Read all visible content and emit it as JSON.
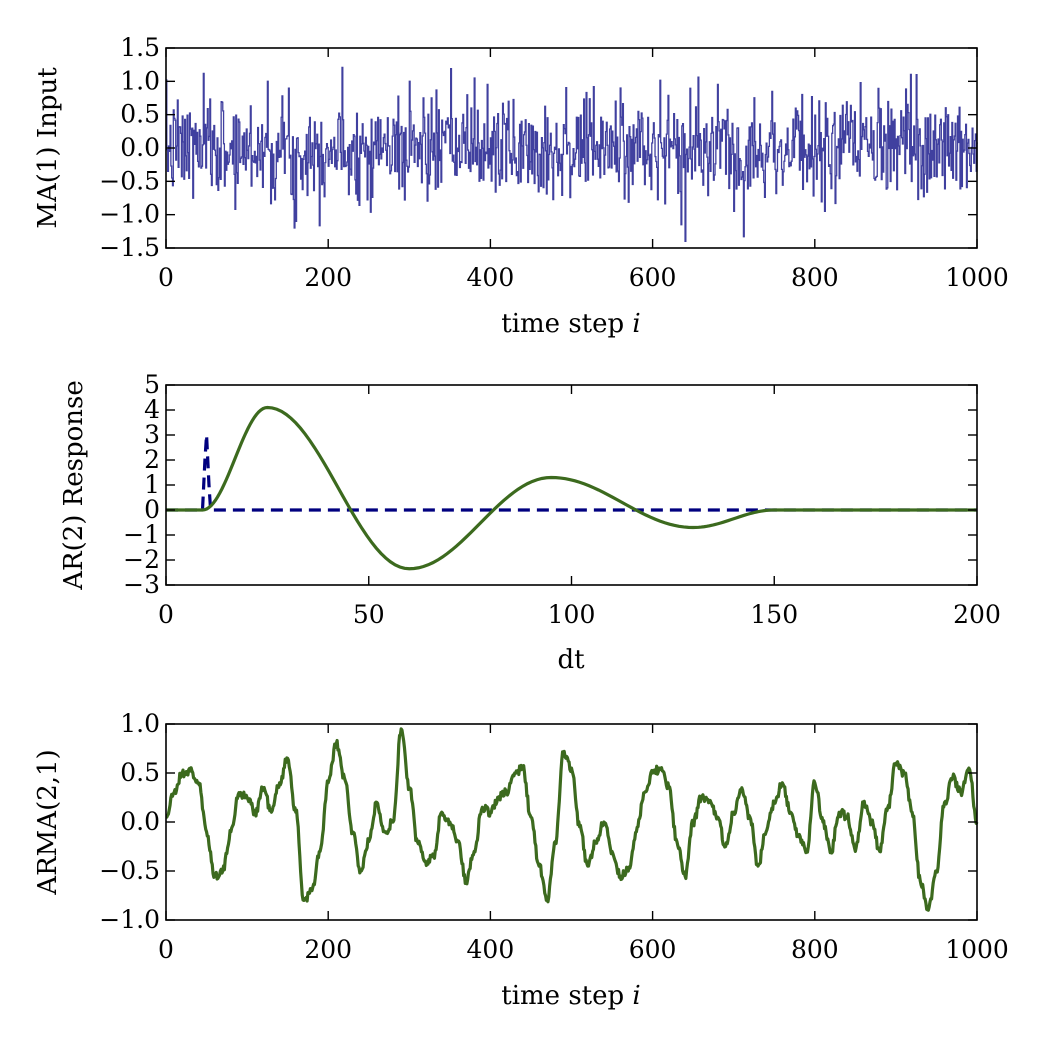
{
  "colors": {
    "ma_series": "#00007f",
    "arma_series": "#3c6a1e",
    "ar_dashed": "#00007f",
    "ar_solid": "#3c6a1e"
  },
  "chart_data": [
    {
      "type": "line",
      "id": "ma1",
      "ylabel": "MA(1) Input",
      "xlabel_text": "time step ",
      "xlabel_var": "i",
      "xlim": [
        0,
        1000
      ],
      "ylim": [
        -1.5,
        1.5
      ],
      "xticks": [
        0,
        200,
        400,
        600,
        800,
        1000
      ],
      "yticks": [
        1.5,
        1.0,
        0.5,
        0.0,
        -0.5,
        -1.0,
        -1.5
      ],
      "xtick_labels": [
        "0",
        "200",
        "400",
        "600",
        "800",
        "1000"
      ],
      "ytick_labels": [
        "1.5",
        "1.0",
        "0.5",
        "0.0",
        "−0.5",
        "−1.0",
        "−1.5"
      ],
      "series": [
        {
          "style": "solid",
          "generator": "white-noise",
          "x_range": [
            0,
            1000
          ],
          "std": 0.37,
          "notable_points": [
            [
              158,
              -1.2
            ],
            [
              160,
              -1.1
            ],
            [
              640,
              -1.4
            ],
            [
              635,
              -1.15
            ],
            [
              925,
              1.1
            ],
            [
              125,
              1.0
            ],
            [
              380,
              1.05
            ],
            [
              300,
              1.0
            ],
            [
              560,
              0.9
            ],
            [
              700,
              -0.95
            ],
            [
              85,
              -0.92
            ]
          ]
        }
      ]
    },
    {
      "type": "line",
      "id": "ar2",
      "ylabel": "AR(2) Response",
      "xlabel_text": "dt",
      "xlabel_var": "",
      "xlim": [
        0,
        200
      ],
      "ylim": [
        -3,
        5
      ],
      "xticks": [
        0,
        50,
        100,
        150,
        200
      ],
      "yticks": [
        5,
        4,
        3,
        2,
        1,
        0,
        -1,
        -2,
        -3
      ],
      "xtick_labels": [
        "0",
        "50",
        "100",
        "150",
        "200"
      ],
      "ytick_labels": [
        "5",
        "4",
        "3",
        "2",
        "1",
        "0",
        "−1",
        "−2",
        "−3"
      ],
      "series": [
        {
          "style": "dashed",
          "x": [
            0,
            8.5,
            9,
            9.3,
            9.6,
            10,
            10.3,
            10.6,
            11,
            200
          ],
          "y": [
            0,
            0,
            0,
            1.0,
            2.0,
            3.0,
            2.0,
            1.0,
            0,
            0
          ]
        },
        {
          "style": "solid",
          "x": [
            0,
            9,
            25,
            60,
            95,
            130,
            150,
            200
          ],
          "y": [
            0,
            0,
            4.1,
            -2.35,
            1.3,
            -0.7,
            0,
            0
          ]
        }
      ]
    },
    {
      "type": "line",
      "id": "arma21",
      "ylabel": "ARMA(2,1)",
      "xlabel_text": "time step ",
      "xlabel_var": "i",
      "xlim": [
        0,
        1000
      ],
      "ylim": [
        -1.0,
        1.0
      ],
      "xticks": [
        0,
        200,
        400,
        600,
        800,
        1000
      ],
      "yticks": [
        1.0,
        0.5,
        0.0,
        -0.5,
        -1.0
      ],
      "xtick_labels": [
        "0",
        "200",
        "400",
        "600",
        "800",
        "1000"
      ],
      "ytick_labels": [
        "1.0",
        "0.5",
        "0.0",
        "−0.5",
        "−1.0"
      ],
      "series": [
        {
          "style": "solid",
          "x": [
            0,
            10,
            20,
            30,
            40,
            50,
            60,
            70,
            80,
            90,
            100,
            110,
            120,
            130,
            140,
            150,
            160,
            170,
            180,
            190,
            200,
            210,
            220,
            230,
            240,
            250,
            260,
            270,
            280,
            290,
            300,
            310,
            320,
            330,
            340,
            350,
            360,
            370,
            380,
            390,
            400,
            410,
            420,
            430,
            440,
            450,
            460,
            470,
            480,
            490,
            500,
            510,
            520,
            530,
            540,
            550,
            560,
            570,
            580,
            590,
            600,
            610,
            620,
            630,
            640,
            650,
            660,
            670,
            680,
            690,
            700,
            710,
            720,
            730,
            740,
            750,
            760,
            770,
            780,
            790,
            800,
            810,
            820,
            830,
            840,
            850,
            860,
            870,
            880,
            890,
            900,
            910,
            920,
            930,
            940,
            950,
            960,
            970,
            980,
            990,
            1000
          ],
          "y": [
            0.05,
            0.3,
            0.5,
            0.52,
            0.4,
            -0.1,
            -0.55,
            -0.5,
            -0.1,
            0.3,
            0.25,
            0.1,
            0.35,
            0.1,
            0.4,
            0.65,
            0.1,
            -0.8,
            -0.7,
            -0.3,
            0.4,
            0.8,
            0.45,
            -0.1,
            -0.5,
            -0.2,
            0.2,
            -0.1,
            0.0,
            0.95,
            0.35,
            -0.2,
            -0.4,
            -0.35,
            0.1,
            0.0,
            -0.2,
            -0.6,
            -0.3,
            0.15,
            0.1,
            0.25,
            0.3,
            0.5,
            0.55,
            0.05,
            -0.45,
            -0.8,
            -0.2,
            0.7,
            0.55,
            -0.05,
            -0.45,
            -0.2,
            0.0,
            -0.3,
            -0.55,
            -0.5,
            -0.1,
            0.3,
            0.5,
            0.55,
            0.35,
            -0.2,
            -0.55,
            0.0,
            0.25,
            0.2,
            0.05,
            -0.25,
            0.1,
            0.35,
            0.05,
            -0.45,
            -0.1,
            0.2,
            0.4,
            0.1,
            -0.15,
            -0.3,
            0.4,
            0.0,
            -0.3,
            0.1,
            0.05,
            -0.3,
            0.2,
            0.0,
            -0.3,
            0.15,
            0.6,
            0.5,
            0.1,
            -0.6,
            -0.9,
            -0.5,
            0.2,
            0.45,
            0.3,
            0.55,
            0.0
          ]
        }
      ]
    }
  ]
}
